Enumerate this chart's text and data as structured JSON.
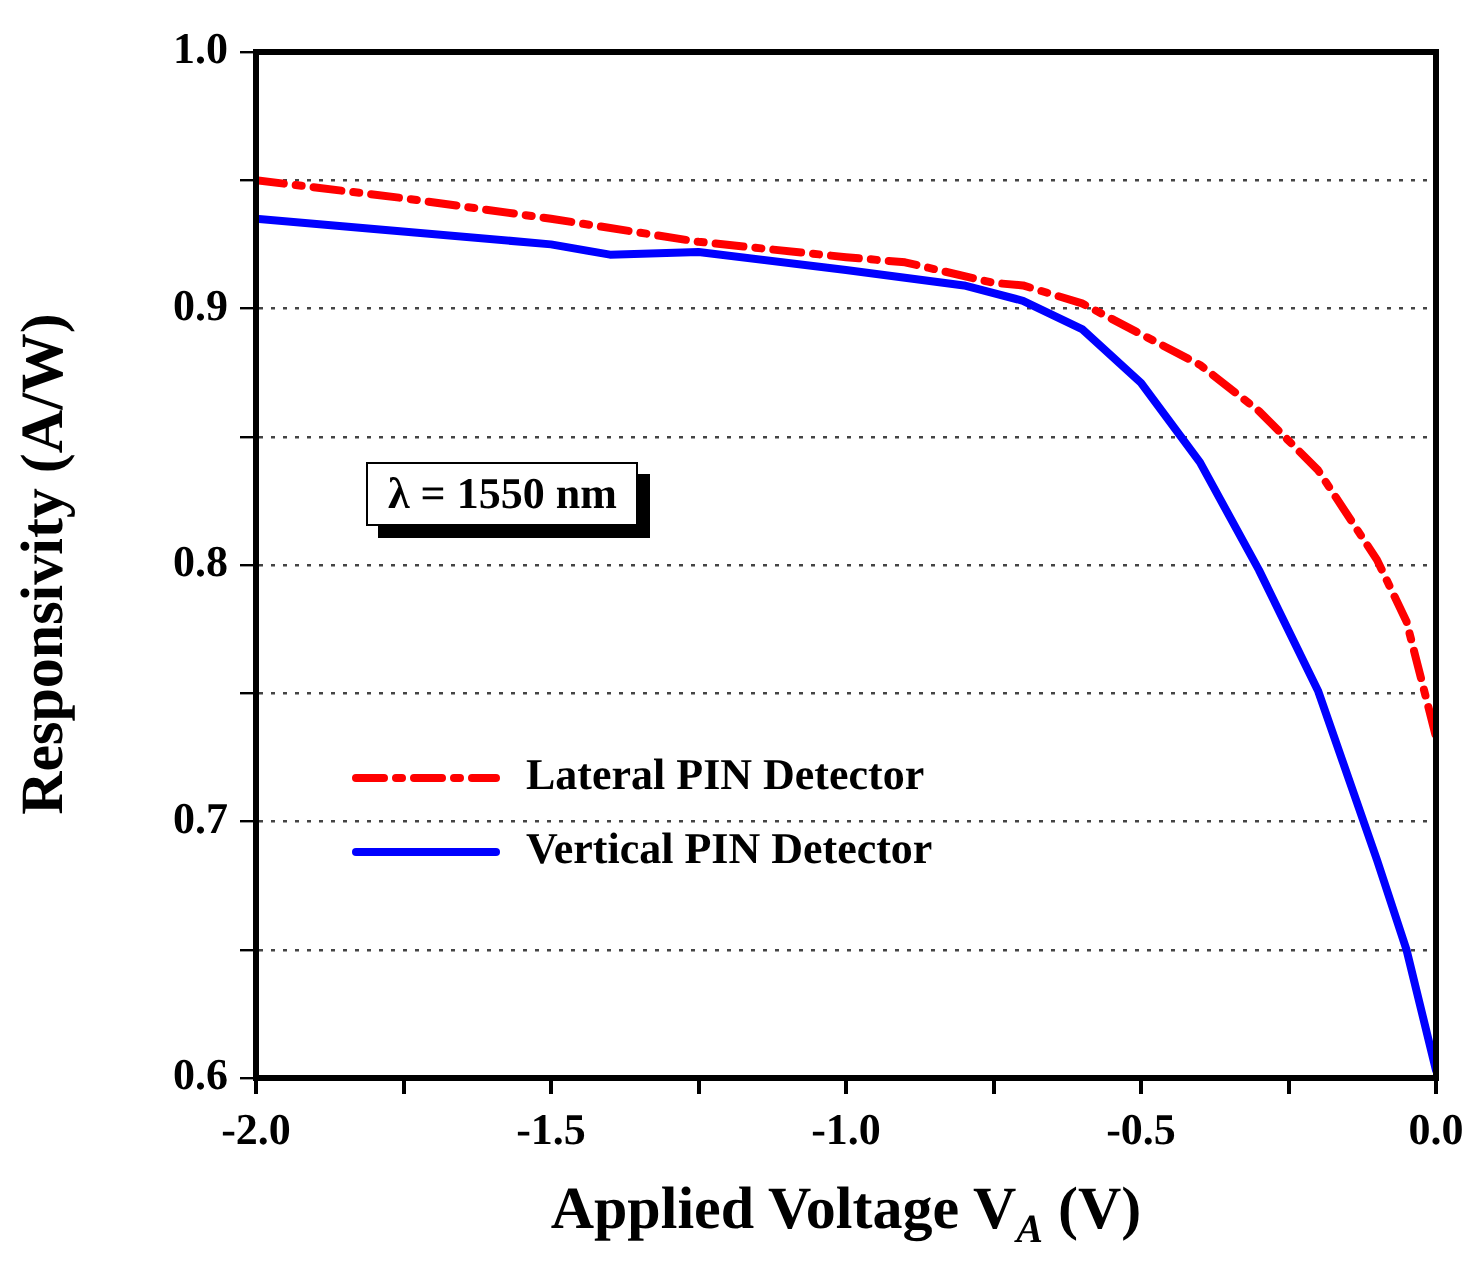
{
  "chart_data": {
    "type": "line",
    "xlabel": "Applied Voltage V$_{A}$ (V)",
    "ylabel": "Responsivity (A/W)",
    "annotations": [
      "λ = 1550 nm"
    ],
    "series": [
      {
        "name": "Lateral PIN Detector",
        "color": "#ff0000",
        "line_style": "dashdot",
        "x": [
          -2.0,
          -1.75,
          -1.5,
          -1.25,
          -1.0,
          -0.9,
          -0.75,
          -0.7,
          -0.6,
          -0.5,
          -0.4,
          -0.3,
          -0.2,
          -0.1,
          -0.05,
          0.0
        ],
        "values": [
          0.95,
          0.943,
          0.935,
          0.926,
          0.92,
          0.918,
          0.91,
          0.909,
          0.902,
          0.89,
          0.878,
          0.86,
          0.837,
          0.802,
          0.778,
          0.733
        ]
      },
      {
        "name": "Vertical PIN Detector",
        "color": "#0000ff",
        "line_style": "solid",
        "x": [
          -2.0,
          -1.8,
          -1.5,
          -1.4,
          -1.25,
          -1.0,
          -0.8,
          -0.7,
          -0.6,
          -0.5,
          -0.4,
          -0.3,
          -0.2,
          -0.1,
          -0.05,
          0.0
        ],
        "values": [
          0.935,
          0.931,
          0.925,
          0.921,
          0.922,
          0.915,
          0.909,
          0.903,
          0.892,
          0.871,
          0.84,
          0.798,
          0.751,
          0.685,
          0.65,
          0.603
        ]
      }
    ],
    "xlim": [
      -2.0,
      0.0
    ],
    "ylim": [
      0.6,
      1.0
    ],
    "xticks": [
      {
        "value": -2.0,
        "label": "-2.0"
      },
      {
        "value": -1.75,
        "label": null
      },
      {
        "value": -1.5,
        "label": "-1.5"
      },
      {
        "value": -1.25,
        "label": null
      },
      {
        "value": -1.0,
        "label": "-1.0"
      },
      {
        "value": -0.75,
        "label": null
      },
      {
        "value": -0.5,
        "label": "-0.5"
      },
      {
        "value": -0.25,
        "label": null
      },
      {
        "value": 0.0,
        "label": "0.0"
      }
    ],
    "yticks": [
      0.6,
      {
        "value": 0.65,
        "label": null
      },
      0.7,
      {
        "value": 0.75,
        "label": null
      },
      0.8,
      {
        "value": 0.85,
        "label": null
      },
      0.9,
      {
        "value": 0.95,
        "label": null
      },
      {
        "value": 1.0,
        "label": "1.0"
      }
    ],
    "grid": "y",
    "legend": "bottom left",
    "marker": "none"
  }
}
